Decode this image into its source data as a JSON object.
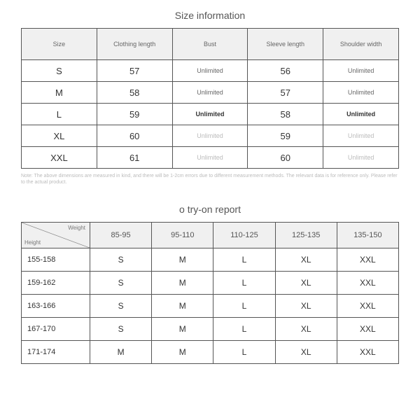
{
  "size_section": {
    "title": "Size information",
    "columns": [
      "Size",
      "Clothing length",
      "Bust",
      "Sleeve length",
      "Shoulder width"
    ],
    "rows": [
      {
        "size": "S",
        "len": "57",
        "bust": "Unlimited",
        "sleeve": "56",
        "shoulder": "Unlimited",
        "muted": false
      },
      {
        "size": "M",
        "len": "58",
        "bust": "Unlimited",
        "sleeve": "57",
        "shoulder": "Unlimited",
        "muted": false
      },
      {
        "size": "L",
        "len": "59",
        "bust": "Unlimited",
        "sleeve": "58",
        "shoulder": "Unlimited",
        "muted": false,
        "bold": true
      },
      {
        "size": "XL",
        "len": "60",
        "bust": "Unlimited",
        "sleeve": "59",
        "shoulder": "Unlimited",
        "muted": true
      },
      {
        "size": "XXL",
        "len": "61",
        "bust": "Unlimited",
        "sleeve": "60",
        "shoulder": "Unlimited",
        "muted": true
      }
    ],
    "note": "Note: The above dimensions are measured in kind, and there will be 1-2cm errors due to different measurement methods. The relevant data is for reference only. Please refer to the actual product."
  },
  "tryon_section": {
    "title": "o try-on report",
    "diag": {
      "weight": "Weight",
      "height": "Height"
    },
    "weight_cols": [
      "85-95",
      "95-110",
      "110-125",
      "125-135",
      "135-150"
    ],
    "rows": [
      {
        "h": "155-158",
        "v": [
          "S",
          "M",
          "L",
          "XL",
          "XXL"
        ]
      },
      {
        "h": "159-162",
        "v": [
          "S",
          "M",
          "L",
          "XL",
          "XXL"
        ]
      },
      {
        "h": "163-166",
        "v": [
          "S",
          "M",
          "L",
          "XL",
          "XXL"
        ]
      },
      {
        "h": "167-170",
        "v": [
          "S",
          "M",
          "L",
          "XL",
          "XXL"
        ]
      },
      {
        "h": "171-174",
        "v": [
          "M",
          "M",
          "L",
          "XL",
          "XXL"
        ]
      }
    ]
  },
  "style": {
    "border_color": "#555555",
    "header_bg": "#f0f0f0",
    "highlight_bg": "#f4e4b8",
    "muted_text": "#bbbbbb"
  }
}
